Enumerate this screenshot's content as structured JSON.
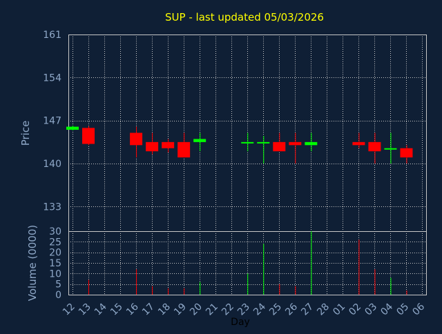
{
  "chart_data": {
    "type": "candlestick",
    "title": "SUP - last updated 05/03/2026",
    "price_panel": {
      "ylabel": "Price",
      "ylim": [
        129,
        161
      ],
      "yticks": [
        "161",
        "154",
        "147",
        "140",
        "133"
      ],
      "ytick_values": [
        161,
        154,
        147,
        140,
        133
      ]
    },
    "volume_panel": {
      "ylabel": "Volume (0000)",
      "ylim": [
        0,
        30
      ],
      "yticks": [
        "30",
        "25",
        "20",
        "15",
        "10",
        "5",
        "0"
      ],
      "ytick_values": [
        30,
        25,
        20,
        15,
        10,
        5,
        0
      ]
    },
    "xlabel": "Day",
    "x_ticks": [
      "12",
      "13",
      "14",
      "15",
      "16",
      "17",
      "18",
      "19",
      "20",
      "21",
      "22",
      "23",
      "24",
      "25",
      "26",
      "27",
      "28",
      "01",
      "02",
      "03",
      "04",
      "05",
      "06"
    ],
    "candles": [
      {
        "day": "12",
        "open": 145.5,
        "high": 146.2,
        "low": 145.4,
        "close": 146.0,
        "volume": 0
      },
      {
        "day": "13",
        "open": 145.8,
        "high": 146.1,
        "low": 143.0,
        "close": 143.2,
        "volume": 7
      },
      {
        "day": "16",
        "open": 145.0,
        "high": 146.0,
        "low": 141.0,
        "close": 143.0,
        "volume": 12
      },
      {
        "day": "17",
        "open": 143.5,
        "high": 145.0,
        "low": 141.5,
        "close": 142.0,
        "volume": 4
      },
      {
        "day": "18",
        "open": 143.5,
        "high": 144.0,
        "low": 141.8,
        "close": 142.5,
        "volume": 3
      },
      {
        "day": "19",
        "open": 143.5,
        "high": 145.0,
        "low": 141.0,
        "close": 141.0,
        "volume": 3
      },
      {
        "day": "20",
        "open": 143.5,
        "high": 145.0,
        "low": 142.0,
        "close": 144.0,
        "volume": 6
      },
      {
        "day": "23",
        "open": 143.5,
        "high": 145.0,
        "low": 142.0,
        "close": 143.5,
        "volume": 10
      },
      {
        "day": "24",
        "open": 143.5,
        "high": 144.5,
        "low": 140.0,
        "close": 143.5,
        "volume": 24
      },
      {
        "day": "25",
        "open": 143.5,
        "high": 145.0,
        "low": 142.0,
        "close": 142.0,
        "volume": 5
      },
      {
        "day": "26",
        "open": 143.5,
        "high": 145.0,
        "low": 140.0,
        "close": 143.0,
        "volume": 4
      },
      {
        "day": "27",
        "open": 143.0,
        "high": 145.0,
        "low": 142.0,
        "close": 143.5,
        "volume": 30
      },
      {
        "day": "02",
        "open": 143.5,
        "high": 145.0,
        "low": 142.5,
        "close": 143.0,
        "volume": 26
      },
      {
        "day": "03",
        "open": 143.5,
        "high": 145.0,
        "low": 140.0,
        "close": 142.0,
        "volume": 12
      },
      {
        "day": "04",
        "open": 142.5,
        "high": 145.0,
        "low": 140.0,
        "close": 142.5,
        "volume": 8
      },
      {
        "day": "05",
        "open": 142.5,
        "high": 143.0,
        "low": 140.0,
        "close": 141.0,
        "volume": 2
      }
    ],
    "grid": true,
    "colors": {
      "background": "#0f1f35",
      "title": "#ffff00",
      "axis_text": "#8fa8c8",
      "grid": "#c8c8c8",
      "up": "#00ff00",
      "down": "#ff0000",
      "xlabel": "#000000"
    }
  }
}
